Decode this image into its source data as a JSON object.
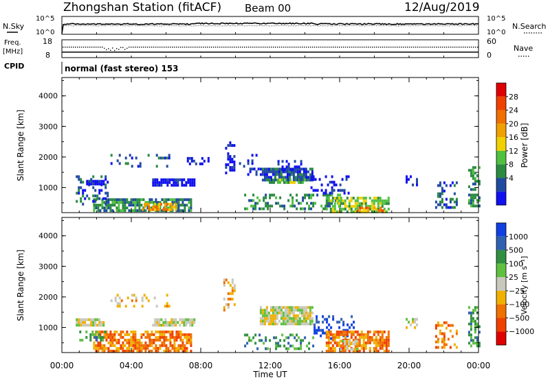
{
  "header": {
    "station": "Zhongshan Station (fitACF)",
    "beam": "Beam 00",
    "date": "12/Aug/2019"
  },
  "nsky_panel": {
    "left_label": "N.Sky",
    "right_label": "N.Search",
    "left_ticks": [
      "10^5",
      "10^0"
    ],
    "right_ticks": [
      "10^5",
      "10^0"
    ]
  },
  "freq_panel": {
    "left_label_top": "Freq.",
    "left_label_bottom": "[MHz]",
    "right_label": "Nave",
    "left_ticks": [
      "18",
      "8"
    ],
    "right_ticks": [
      "60",
      "0"
    ]
  },
  "cpid": {
    "label": "CPID",
    "value": "normal (fast stereo) 153"
  },
  "time_axis": {
    "label": "Time UT",
    "ticks": [
      "00:00",
      "04:00",
      "08:00",
      "12:00",
      "16:00",
      "20:00",
      "00:00"
    ]
  },
  "chart_data": [
    {
      "type": "heatmap",
      "name": "power",
      "xlabel": "Time UT",
      "ylabel": "Slant Range [km]",
      "xlim": [
        0,
        24
      ],
      "ylim": [
        180,
        4600
      ],
      "yticks": [
        "4000",
        "3000",
        "2000",
        "1000"
      ],
      "colorbar": {
        "label": "Power [dB]",
        "ticks": [
          "28",
          "24",
          "20",
          "16",
          "12",
          "8",
          "4"
        ],
        "colors": [
          "#e00000",
          "#f04000",
          "#f07000",
          "#f0a000",
          "#f0d000",
          "#50c040",
          "#2a8a40",
          "#204aa0",
          "#1010f0"
        ]
      },
      "regions": [
        {
          "t": [
            1.8,
            7.4
          ],
          "r": [
            250,
            650
          ],
          "level": 2,
          "density": 0.75
        },
        {
          "t": [
            4.6,
            6.6
          ],
          "r": [
            300,
            500
          ],
          "level": 5,
          "density": 0.6
        },
        {
          "t": [
            0.8,
            2.6
          ],
          "r": [
            500,
            1400
          ],
          "level": 1,
          "density": 0.35
        },
        {
          "t": [
            1.4,
            2.4
          ],
          "r": [
            1100,
            1250
          ],
          "level": 0,
          "density": 0.9
        },
        {
          "t": [
            5.2,
            7.6
          ],
          "r": [
            1100,
            1300
          ],
          "level": 0,
          "density": 0.8
        },
        {
          "t": [
            2.8,
            6.2
          ],
          "r": [
            1700,
            2100
          ],
          "level": 1,
          "density": 0.2
        },
        {
          "t": [
            7.2,
            8.4
          ],
          "r": [
            1800,
            2000
          ],
          "level": 0,
          "density": 0.4
        },
        {
          "t": [
            9.4,
            9.9
          ],
          "r": [
            1500,
            2600
          ],
          "level": 0,
          "density": 0.35
        },
        {
          "t": [
            10.2,
            11.5
          ],
          "r": [
            1400,
            2100
          ],
          "level": 0,
          "density": 0.15
        },
        {
          "t": [
            11.4,
            14.4
          ],
          "r": [
            1250,
            1650
          ],
          "level": 1,
          "density": 0.85
        },
        {
          "t": [
            11.8,
            14.0
          ],
          "r": [
            1150,
            1300
          ],
          "level": 3,
          "density": 0.7
        },
        {
          "t": [
            12.3,
            13.8
          ],
          "r": [
            1600,
            1900
          ],
          "level": 0,
          "density": 0.3
        },
        {
          "t": [
            10.5,
            16.0
          ],
          "r": [
            300,
            800
          ],
          "level": 2,
          "density": 0.35
        },
        {
          "t": [
            14.2,
            16.5
          ],
          "r": [
            800,
            1400
          ],
          "level": 0,
          "density": 0.3
        },
        {
          "t": [
            15.2,
            18.8
          ],
          "r": [
            200,
            700
          ],
          "level": 3,
          "density": 0.75
        },
        {
          "t": [
            17.0,
            18.6
          ],
          "r": [
            220,
            380
          ],
          "level": 6,
          "density": 0.6
        },
        {
          "t": [
            19.8,
            20.5
          ],
          "r": [
            1000,
            1400
          ],
          "level": 0,
          "density": 0.3
        },
        {
          "t": [
            21.5,
            22.8
          ],
          "r": [
            300,
            1200
          ],
          "level": 1,
          "density": 0.35
        },
        {
          "t": [
            23.4,
            24.0
          ],
          "r": [
            400,
            1700
          ],
          "level": 2,
          "density": 0.5
        }
      ]
    },
    {
      "type": "heatmap",
      "name": "velocity",
      "xlabel": "Time UT",
      "ylabel": "Slant Range [km]",
      "xlim": [
        0,
        24
      ],
      "ylim": [
        180,
        4600
      ],
      "yticks": [
        "4000",
        "3000",
        "2000",
        "1000"
      ],
      "colorbar": {
        "label": "Velocity [m s⁻¹]",
        "ticks": [
          "1000",
          "500",
          "100",
          "25",
          "−25",
          "−100",
          "−500",
          "−1000"
        ],
        "colors": [
          "#1040e0",
          "#3060b0",
          "#309040",
          "#60c040",
          "#c8c8bc",
          "#f0b000",
          "#f07000",
          "#f04000",
          "#e00000"
        ]
      },
      "regions": [
        {
          "t": [
            1.8,
            7.4
          ],
          "r": [
            250,
            900
          ],
          "level": 6,
          "density": 0.7
        },
        {
          "t": [
            0.8,
            2.4
          ],
          "r": [
            1100,
            1300
          ],
          "level": 4,
          "density": 0.85
        },
        {
          "t": [
            5.2,
            7.6
          ],
          "r": [
            1100,
            1300
          ],
          "level": 4,
          "density": 0.85
        },
        {
          "t": [
            1.0,
            2.5
          ],
          "r": [
            600,
            900
          ],
          "level": 2,
          "density": 0.3
        },
        {
          "t": [
            2.8,
            6.2
          ],
          "r": [
            1700,
            2100
          ],
          "level": 5,
          "density": 0.2
        },
        {
          "t": [
            9.3,
            9.9
          ],
          "r": [
            1600,
            2600
          ],
          "level": 5,
          "density": 0.3
        },
        {
          "t": [
            11.4,
            14.4
          ],
          "r": [
            1150,
            1700
          ],
          "level": 4,
          "density": 0.85
        },
        {
          "t": [
            10.5,
            14.5
          ],
          "r": [
            350,
            800
          ],
          "level": 2,
          "density": 0.35
        },
        {
          "t": [
            14.5,
            16.8
          ],
          "r": [
            600,
            1400
          ],
          "level": 0,
          "density": 0.3
        },
        {
          "t": [
            15.2,
            18.8
          ],
          "r": [
            200,
            900
          ],
          "level": 6,
          "density": 0.7
        },
        {
          "t": [
            16.0,
            17.0
          ],
          "r": [
            300,
            600
          ],
          "level": 4,
          "density": 0.5
        },
        {
          "t": [
            19.8,
            20.5
          ],
          "r": [
            1000,
            1400
          ],
          "level": 4,
          "density": 0.35
        },
        {
          "t": [
            21.5,
            22.8
          ],
          "r": [
            300,
            1200
          ],
          "level": 6,
          "density": 0.3
        },
        {
          "t": [
            23.4,
            24.0
          ],
          "r": [
            400,
            1700
          ],
          "level": 2,
          "density": 0.5
        }
      ]
    }
  ]
}
